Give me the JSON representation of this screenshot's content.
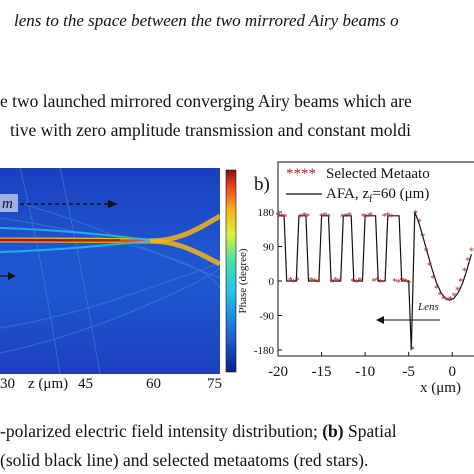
{
  "text": {
    "line1": "lens to the space between the two mirrored Airy beams o",
    "line2": "e two launched mirrored converging Airy beams which are",
    "line3": "tive with zero amplitude transmission and constant moldi",
    "caption_line1_a": "-polarized electric field intensity distribution; ",
    "caption_line1_b": "(b)",
    "caption_line1_c": " Spatial ",
    "caption_line2": "(solid black line) and selected metaatoms (red stars)."
  },
  "panel_a": {
    "xlabel_tokens": [
      "30",
      "45",
      "60",
      "75"
    ],
    "xlabel": "z (μm)",
    "beam_label": "m",
    "colors": [
      "#0a1d8f",
      "#1f6bd9",
      "#24c4e8",
      "#47e0a6",
      "#d9f23b",
      "#f7b41a",
      "#e8431a",
      "#8a0f0f"
    ]
  },
  "panel_b": {
    "label": "b)",
    "legend": {
      "stars": "Selected Metaato",
      "line": "AFA, z",
      "line_sub": "f",
      "line_rest": "=60 (μm)"
    },
    "annotation": "Lens",
    "ylabel": "Phase (degree)",
    "xlabel": "x (μm)",
    "yticks": [
      "180",
      "90",
      "0",
      "-90",
      "-180"
    ],
    "xticks": [
      "-20",
      "-15",
      "-10",
      "-5",
      "0"
    ]
  },
  "chart_data": {
    "type": "line",
    "xlabel": "x (μm)",
    "ylabel": "Phase (degree)",
    "ylim": [
      -180,
      180
    ],
    "xlim": [
      -20,
      2.5
    ],
    "series": [
      {
        "name": "AFA, z_f=60 (μm)",
        "x": [
          -20,
          -19.3,
          -19.0,
          -17.9,
          -17.6,
          -16.8,
          -16.5,
          -15.3,
          -15.0,
          -14.2,
          -13.9,
          -12.8,
          -12.5,
          -11.6,
          -11.3,
          -10.3,
          -10.0,
          -8.8,
          -8.5,
          -7.7,
          -7.4,
          -6.1,
          -5.8,
          -5.0,
          -4.7,
          -4.3,
          -3.8,
          -3.3,
          -2.8,
          -2.3,
          -1.8,
          -1.3,
          -0.8,
          -0.3,
          0.2,
          0.7,
          1.2,
          1.7,
          2.2
        ],
        "y": [
          170,
          170,
          0,
          0,
          170,
          170,
          0,
          0,
          170,
          170,
          0,
          0,
          170,
          170,
          0,
          0,
          170,
          170,
          0,
          0,
          170,
          170,
          0,
          0,
          -180,
          180,
          150,
          110,
          70,
          30,
          -5,
          -30,
          -45,
          -50,
          -45,
          -30,
          -5,
          30,
          70
        ]
      },
      {
        "name": "Selected Metaatoms",
        "x": [
          -20,
          -19.6,
          -19.2,
          -18.6,
          -18.2,
          -17.8,
          -17.4,
          -17.0,
          -16.6,
          -16.2,
          -15.8,
          -15.4,
          -15.0,
          -14.6,
          -14.2,
          -13.8,
          -13.4,
          -13.0,
          -12.6,
          -12.2,
          -11.8,
          -11.4,
          -11.0,
          -10.6,
          -10.2,
          -9.8,
          -9.4,
          -9.0,
          -8.6,
          -8.2,
          -7.8,
          -7.4,
          -7.0,
          -6.6,
          -6.2,
          -5.8,
          -5.4,
          -5.0,
          -4.6,
          -4.2,
          -3.8,
          -3.4,
          -3.0,
          -2.6,
          -2.2,
          -1.8,
          -1.4,
          -1.0,
          -0.6,
          -0.2,
          0.2,
          0.6,
          1.0,
          1.4,
          1.8,
          2.2
        ],
        "y": [
          172,
          170,
          168,
          2,
          -2,
          3,
          168,
          172,
          170,
          2,
          0,
          -3,
          170,
          172,
          168,
          -2,
          2,
          0,
          168,
          170,
          172,
          0,
          -3,
          2,
          170,
          168,
          172,
          0,
          3,
          -2,
          170,
          172,
          168,
          0,
          -2,
          3,
          0,
          -5,
          -178,
          178,
          155,
          118,
          80,
          42,
          8,
          -18,
          -35,
          -46,
          -50,
          -47,
          -38,
          -22,
          0,
          28,
          55,
          80
        ]
      }
    ]
  }
}
